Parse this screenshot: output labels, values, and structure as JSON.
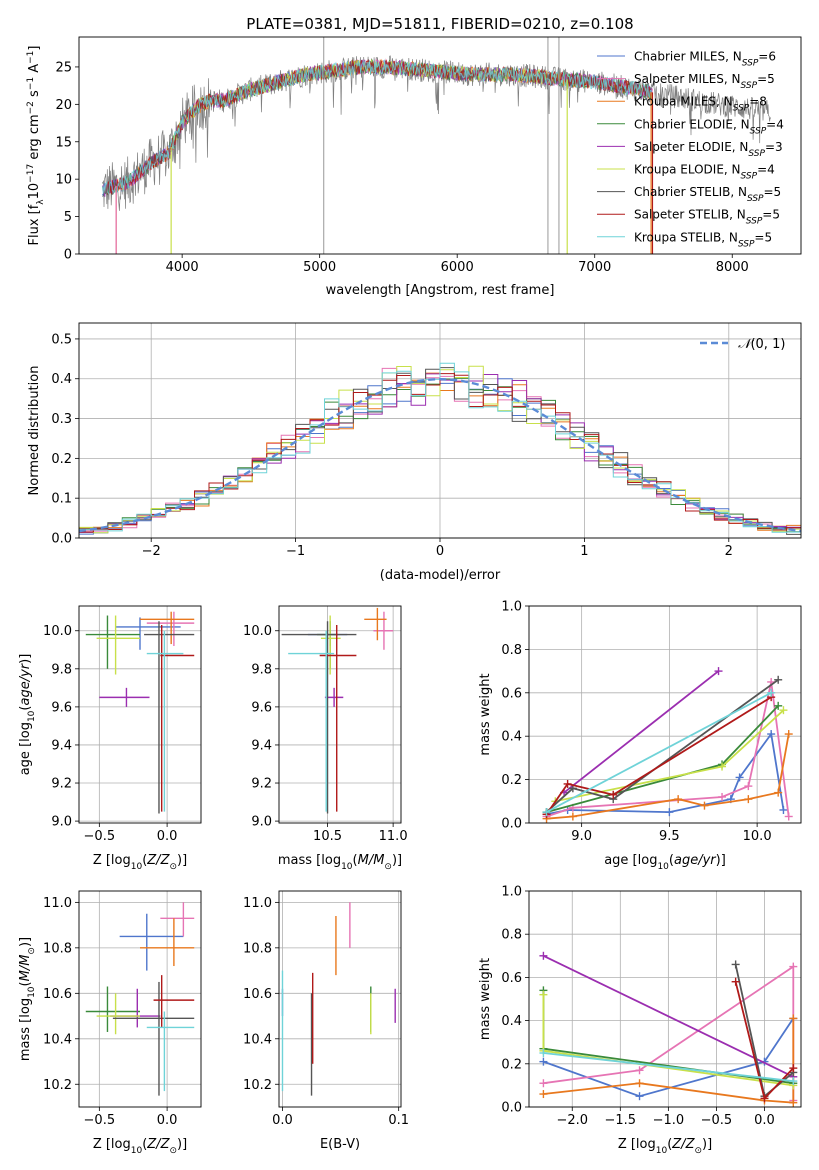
{
  "title": "PLATE=0381, MJD=51811, FIBERID=0210, z=0.108",
  "colors": {
    "Chabrier MILES": "#4f76cc",
    "Salpeter MILES": "#e674b4",
    "Kroupa MILES": "#e8781e",
    "Chabrier ELODIE": "#3a8a3a",
    "Salpeter ELODIE": "#9b2eb0",
    "Kroupa ELODIE": "#c8e04a",
    "Chabrier STELIB": "#555555",
    "Salpeter STELIB": "#b01a1a",
    "Kroupa STELIB": "#6fd3d8",
    "normal": "#5b8bd6"
  },
  "chart_data": [
    {
      "id": "spectrum",
      "type": "line",
      "xlabel": "wavelength [Angstrom, rest frame]",
      "ylabel": "Flux [f_λ 10^-17 erg cm^-2 s^-1 A^-1]",
      "xlim": [
        3250,
        8500
      ],
      "ylim": [
        0,
        29
      ],
      "xticks": [
        "4000",
        "5000",
        "6000",
        "7000",
        "8000"
      ],
      "yticks": [
        "0",
        "5",
        "10",
        "15",
        "20",
        "25"
      ],
      "grid": false,
      "legend_position": "top-right",
      "legend": [
        {
          "model": "Chabrier MILES",
          "label": "Chabrier MILES, N_SSP=6"
        },
        {
          "model": "Salpeter MILES",
          "label": "Salpeter MILES, N_SSP=5"
        },
        {
          "model": "Kroupa MILES",
          "label": "Kroupa MILES, N_SSP=8"
        },
        {
          "model": "Chabrier ELODIE",
          "label": "Chabrier ELODIE, N_SSP=4"
        },
        {
          "model": "Salpeter ELODIE",
          "label": "Salpeter ELODIE, N_SSP=3"
        },
        {
          "model": "Kroupa ELODIE",
          "label": "Kroupa ELODIE, N_SSP=4"
        },
        {
          "model": "Chabrier STELIB",
          "label": "Chabrier STELIB, N_SSP=5"
        },
        {
          "model": "Salpeter STELIB",
          "label": "Salpeter STELIB, N_SSP=5"
        },
        {
          "model": "Kroupa STELIB",
          "label": "Kroupa STELIB, N_SSP=5"
        }
      ],
      "continuum": {
        "x": [
          3420,
          3500,
          3600,
          3700,
          3800,
          3900,
          4000,
          4100,
          4200,
          4300,
          4500,
          4700,
          4900,
          5100,
          5300,
          5500,
          5800,
          6100,
          6400,
          6700,
          7000,
          7300,
          7600,
          7900,
          8280
        ],
        "y": [
          8.5,
          9.0,
          9.5,
          11.0,
          12.5,
          13.5,
          17.5,
          19.5,
          20.5,
          20.5,
          22.0,
          23.0,
          24.0,
          24.5,
          25.0,
          25.0,
          24.5,
          24.0,
          24.0,
          23.5,
          23.0,
          22.0,
          21.0,
          20.0,
          19.0
        ]
      },
      "spikes": [
        {
          "x": 5030,
          "y": 29
        },
        {
          "x": 6660,
          "y": 29
        },
        {
          "x": 6740,
          "y": 29
        }
      ],
      "cutoffs": [
        {
          "model": "Kroupa MILES",
          "x": 3520
        },
        {
          "model": "Salpeter MILES",
          "x": 3520
        },
        {
          "model": "Kroupa ELODIE",
          "x": 3920
        },
        {
          "model": "Kroupa ELODIE",
          "x": 6800
        },
        {
          "model": "Salpeter STELIB",
          "x": 7420
        },
        {
          "model": "Kroupa MILES",
          "x": 7410
        }
      ]
    },
    {
      "id": "residuals",
      "type": "line",
      "xlabel": "(data-model)/error",
      "ylabel": "Normed distribution",
      "xlim": [
        -2.5,
        2.5
      ],
      "ylim": [
        0,
        0.54
      ],
      "xticks": [
        "−2",
        "−1",
        "0",
        "1",
        "2"
      ],
      "yticks": [
        "0.0",
        "0.1",
        "0.2",
        "0.3",
        "0.4",
        "0.5"
      ],
      "grid": true,
      "legend_position": "top-right",
      "legend": [
        "N(0, 1)"
      ],
      "bin_width": 0.1
    },
    {
      "id": "age-vs-Z",
      "type": "scatter",
      "xlabel": "Z [log10(Z/Z⊙)]",
      "ylabel": "age [log10(age/yr)]",
      "xlim": [
        -0.65,
        0.25
      ],
      "ylim": [
        8.99,
        10.13
      ],
      "xticks": [
        "−0.5",
        "0.0"
      ],
      "yticks": [
        "9.0",
        "9.2",
        "9.4",
        "9.6",
        "9.8",
        "10.0"
      ],
      "grid": true,
      "points": [
        {
          "model": "Chabrier MILES",
          "x": -0.2,
          "y": 10.02,
          "ex": [
            -0.38,
            0.1
          ],
          "ey": [
            9.9,
            10.07
          ]
        },
        {
          "model": "Salpeter MILES",
          "x": 0.05,
          "y": 10.04,
          "ex": [
            -0.15,
            0.2
          ],
          "ey": [
            9.92,
            10.1
          ]
        },
        {
          "model": "Kroupa MILES",
          "x": 0.03,
          "y": 10.06,
          "ex": [
            -0.2,
            0.2
          ],
          "ey": [
            9.93,
            10.1
          ]
        },
        {
          "model": "Chabrier ELODIE",
          "x": -0.44,
          "y": 9.98,
          "ex": [
            -0.6,
            -0.2
          ],
          "ey": [
            9.8,
            10.08
          ]
        },
        {
          "model": "Salpeter ELODIE",
          "x": -0.3,
          "y": 9.65,
          "ex": [
            -0.5,
            -0.13
          ],
          "ey": [
            9.6,
            9.7
          ]
        },
        {
          "model": "Kroupa ELODIE",
          "x": -0.38,
          "y": 9.96,
          "ex": [
            -0.52,
            -0.2
          ],
          "ey": [
            9.77,
            10.08
          ]
        },
        {
          "model": "Chabrier STELIB",
          "x": -0.06,
          "y": 9.98,
          "ex": [
            -0.17,
            0.2
          ],
          "ey": [
            9.04,
            10.05
          ]
        },
        {
          "model": "Salpeter STELIB",
          "x": -0.04,
          "y": 9.87,
          "ex": [
            -0.05,
            0.2
          ],
          "ey": [
            9.05,
            10.03
          ]
        },
        {
          "model": "Kroupa STELIB",
          "x": -0.02,
          "y": 9.88,
          "ex": [
            -0.15,
            0.12
          ],
          "ey": [
            9.05,
            10.0
          ]
        }
      ]
    },
    {
      "id": "age-vs-mass",
      "type": "scatter",
      "xlabel": "mass [log10(M/M⊙)]",
      "ylabel": "",
      "xlim": [
        10.13,
        11.06
      ],
      "ylim": [
        8.99,
        10.13
      ],
      "xticks": [
        "10.5",
        "11.0"
      ],
      "yticks": [
        "9.0",
        "9.2",
        "9.4",
        "9.6",
        "9.8",
        "10.0"
      ],
      "grid": true,
      "points": [
        {
          "model": "Chabrier MILES",
          "x": 10.52,
          "y": 9.98,
          "ex": [
            10.35,
            10.65
          ],
          "ey": [
            9.92,
            10.05
          ]
        },
        {
          "model": "Salpeter MILES",
          "x": 10.93,
          "y": 10.0,
          "ex": [
            10.85,
            11.0
          ],
          "ey": [
            9.9,
            10.1
          ]
        },
        {
          "model": "Kroupa MILES",
          "x": 10.88,
          "y": 10.06,
          "ex": [
            10.78,
            10.95
          ],
          "ey": [
            9.95,
            10.12
          ]
        },
        {
          "model": "Chabrier ELODIE",
          "x": 10.52,
          "y": 9.98,
          "ex": [
            10.42,
            10.58
          ],
          "ey": [
            9.8,
            10.05
          ]
        },
        {
          "model": "Salpeter ELODIE",
          "x": 10.55,
          "y": 9.65,
          "ex": [
            10.48,
            10.62
          ],
          "ey": [
            9.6,
            9.7
          ]
        },
        {
          "model": "Kroupa ELODIE",
          "x": 10.52,
          "y": 9.96,
          "ex": [
            10.45,
            10.6
          ],
          "ey": [
            9.77,
            10.08
          ]
        },
        {
          "model": "Chabrier STELIB",
          "x": 10.5,
          "y": 9.98,
          "ex": [
            10.15,
            10.72
          ],
          "ey": [
            9.04,
            10.05
          ]
        },
        {
          "model": "Salpeter STELIB",
          "x": 10.57,
          "y": 9.87,
          "ex": [
            10.44,
            10.72
          ],
          "ey": [
            9.05,
            10.03
          ]
        },
        {
          "model": "Kroupa STELIB",
          "x": 10.49,
          "y": 9.88,
          "ex": [
            10.2,
            10.55
          ],
          "ey": [
            9.05,
            10.0
          ]
        }
      ]
    },
    {
      "id": "weights-vs-age",
      "type": "line",
      "xlabel": "age [log10(age/yr)]",
      "ylabel": "mass weight",
      "xlim": [
        8.7,
        10.25
      ],
      "ylim": [
        0,
        1
      ],
      "xticks": [
        "9.0",
        "9.5",
        "10.0"
      ],
      "yticks": [
        "0.0",
        "0.2",
        "0.4",
        "0.6",
        "0.8",
        "1.0"
      ],
      "grid": true,
      "series": [
        {
          "model": "Chabrier MILES",
          "x": [
            8.8,
            8.92,
            9.5,
            9.85,
            9.9,
            10.08,
            10.15
          ],
          "y": [
            0.04,
            0.06,
            0.05,
            0.11,
            0.21,
            0.41,
            0.06
          ]
        },
        {
          "model": "Salpeter MILES",
          "x": [
            8.8,
            8.95,
            9.8,
            9.95,
            10.08,
            10.18
          ],
          "y": [
            0.03,
            0.07,
            0.12,
            0.17,
            0.65,
            0.03
          ]
        },
        {
          "model": "Kroupa MILES",
          "x": [
            8.8,
            8.95,
            9.55,
            9.7,
            9.95,
            10.12,
            10.18
          ],
          "y": [
            0.02,
            0.03,
            0.11,
            0.08,
            0.11,
            0.14,
            0.41
          ]
        },
        {
          "model": "Chabrier ELODIE",
          "x": [
            8.8,
            9.8,
            10.12
          ],
          "y": [
            0.05,
            0.27,
            0.54
          ]
        },
        {
          "model": "Salpeter ELODIE",
          "x": [
            8.9,
            9.78
          ],
          "y": [
            0.14,
            0.7
          ]
        },
        {
          "model": "Kroupa ELODIE",
          "x": [
            8.85,
            9.8,
            10.15
          ],
          "y": [
            0.1,
            0.26,
            0.52
          ]
        },
        {
          "model": "Chabrier STELIB",
          "x": [
            8.8,
            8.95,
            9.18,
            10.12
          ],
          "y": [
            0.05,
            0.16,
            0.11,
            0.66
          ]
        },
        {
          "model": "Salpeter STELIB",
          "x": [
            8.8,
            8.92,
            9.18,
            10.08
          ],
          "y": [
            0.04,
            0.18,
            0.13,
            0.58
          ]
        },
        {
          "model": "Kroupa STELIB",
          "x": [
            8.8,
            10.08
          ],
          "y": [
            0.05,
            0.6
          ]
        }
      ]
    },
    {
      "id": "mass-vs-Z",
      "type": "scatter",
      "xlabel": "Z [log10(Z/Z⊙)]",
      "ylabel": "mass [log10(M/M⊙)]",
      "xlim": [
        -0.65,
        0.25
      ],
      "ylim": [
        10.1,
        11.05
      ],
      "xticks": [
        "−0.5",
        "0.0"
      ],
      "yticks": [
        "10.2",
        "10.4",
        "10.6",
        "10.8",
        "11.0"
      ],
      "grid": true,
      "points": [
        {
          "model": "Chabrier MILES",
          "x": -0.15,
          "y": 10.85,
          "ex": [
            -0.35,
            0.12
          ],
          "ey": [
            10.7,
            10.95
          ]
        },
        {
          "model": "Salpeter MILES",
          "x": 0.12,
          "y": 10.93,
          "ex": [
            -0.05,
            0.2
          ],
          "ey": [
            10.85,
            11.0
          ]
        },
        {
          "model": "Kroupa MILES",
          "x": 0.05,
          "y": 10.8,
          "ex": [
            -0.2,
            0.2
          ],
          "ey": [
            10.72,
            10.93
          ]
        },
        {
          "model": "Chabrier ELODIE",
          "x": -0.44,
          "y": 10.52,
          "ex": [
            -0.6,
            -0.2
          ],
          "ey": [
            10.43,
            10.63
          ]
        },
        {
          "model": "Salpeter ELODIE",
          "x": -0.22,
          "y": 10.5,
          "ex": [
            -0.42,
            -0.05
          ],
          "ey": [
            10.45,
            10.62
          ]
        },
        {
          "model": "Kroupa ELODIE",
          "x": -0.38,
          "y": 10.5,
          "ex": [
            -0.52,
            -0.2
          ],
          "ey": [
            10.42,
            10.6
          ]
        },
        {
          "model": "Chabrier STELIB",
          "x": -0.06,
          "y": 10.49,
          "ex": [
            -0.4,
            0.2
          ],
          "ey": [
            10.15,
            10.65
          ]
        },
        {
          "model": "Salpeter STELIB",
          "x": -0.04,
          "y": 10.57,
          "ex": [
            -0.1,
            0.2
          ],
          "ey": [
            10.45,
            10.68
          ]
        },
        {
          "model": "Kroupa STELIB",
          "x": -0.02,
          "y": 10.45,
          "ex": [
            -0.15,
            0.2
          ],
          "ey": [
            10.17,
            10.52
          ]
        }
      ]
    },
    {
      "id": "mass-vs-EBV",
      "type": "scatter",
      "xlabel": "E(B-V)",
      "ylabel": "",
      "xlim": [
        -0.003,
        0.102
      ],
      "ylim": [
        10.1,
        11.05
      ],
      "xticks": [
        "0.0",
        "0.1"
      ],
      "yticks": [
        "10.2",
        "10.4",
        "10.6",
        "10.8",
        "11.0"
      ],
      "grid": true,
      "points": [
        {
          "model": "Chabrier MILES",
          "x": 0.0,
          "y": 10.58,
          "ex": [
            0.0,
            0.0
          ],
          "ey": [
            10.5,
            10.62
          ]
        },
        {
          "model": "Salpeter MILES",
          "x": 0.058,
          "y": 10.9,
          "ex": [
            0.058,
            0.058
          ],
          "ey": [
            10.8,
            11.0
          ]
        },
        {
          "model": "Kroupa MILES",
          "x": 0.046,
          "y": 10.82,
          "ex": [
            0.046,
            0.046
          ],
          "ey": [
            10.68,
            10.94
          ]
        },
        {
          "model": "Chabrier ELODIE",
          "x": 0.076,
          "y": 10.55,
          "ex": [
            0.076,
            0.076
          ],
          "ey": [
            10.43,
            10.63
          ]
        },
        {
          "model": "Salpeter ELODIE",
          "x": 0.097,
          "y": 10.55,
          "ex": [
            0.097,
            0.097
          ],
          "ey": [
            10.47,
            10.62
          ]
        },
        {
          "model": "Kroupa ELODIE",
          "x": 0.076,
          "y": 10.5,
          "ex": [
            0.076,
            0.076
          ],
          "ey": [
            10.42,
            10.6
          ]
        },
        {
          "model": "Chabrier STELIB",
          "x": 0.025,
          "y": 10.4,
          "ex": [
            0.025,
            0.025
          ],
          "ey": [
            10.15,
            10.6
          ]
        },
        {
          "model": "Salpeter STELIB",
          "x": 0.026,
          "y": 10.5,
          "ex": [
            0.026,
            0.026
          ],
          "ey": [
            10.29,
            10.69
          ]
        },
        {
          "model": "Kroupa STELIB",
          "x": 0.0,
          "y": 10.45,
          "ex": [
            0.0,
            0.0
          ],
          "ey": [
            10.17,
            10.7
          ]
        }
      ]
    },
    {
      "id": "weights-vs-Z",
      "type": "line",
      "xlabel": "Z [log10(Z/Z⊙)]",
      "ylabel": "mass weight",
      "xlim": [
        -2.45,
        0.38
      ],
      "ylim": [
        0,
        1
      ],
      "xticks": [
        "−2.0",
        "−1.5",
        "−1.0",
        "−0.5",
        "0.0"
      ],
      "yticks": [
        "0.0",
        "0.2",
        "0.4",
        "0.6",
        "0.8",
        "1.0"
      ],
      "grid": true,
      "series": [
        {
          "model": "Chabrier MILES",
          "x": [
            -2.3,
            -1.3,
            0.0,
            0.3
          ],
          "y": [
            0.21,
            0.05,
            0.21,
            0.41
          ]
        },
        {
          "model": "Salpeter MILES",
          "x": [
            -2.3,
            -1.3,
            0.3,
            0.3
          ],
          "y": [
            0.11,
            0.17,
            0.65,
            0.03
          ]
        },
        {
          "model": "Kroupa MILES",
          "x": [
            -2.3,
            -1.3,
            0.0,
            0.3,
            0.3
          ],
          "y": [
            0.06,
            0.11,
            0.03,
            0.02,
            0.41
          ]
        },
        {
          "model": "Chabrier ELODIE",
          "x": [
            -2.3,
            -2.3,
            0.3
          ],
          "y": [
            0.54,
            0.27,
            0.11
          ]
        },
        {
          "model": "Salpeter ELODIE",
          "x": [
            -2.3,
            0.3
          ],
          "y": [
            0.7,
            0.14
          ]
        },
        {
          "model": "Kroupa ELODIE",
          "x": [
            -2.3,
            -2.3,
            0.3
          ],
          "y": [
            0.52,
            0.26,
            0.1
          ]
        },
        {
          "model": "Chabrier STELIB",
          "x": [
            -0.3,
            0.0,
            0.3
          ],
          "y": [
            0.66,
            0.05,
            0.16
          ]
        },
        {
          "model": "Salpeter STELIB",
          "x": [
            -0.3,
            0.0,
            0.3
          ],
          "y": [
            0.58,
            0.04,
            0.18
          ]
        },
        {
          "model": "Kroupa STELIB",
          "x": [
            -2.3,
            0.3
          ],
          "y": [
            0.25,
            0.12
          ]
        }
      ]
    }
  ]
}
